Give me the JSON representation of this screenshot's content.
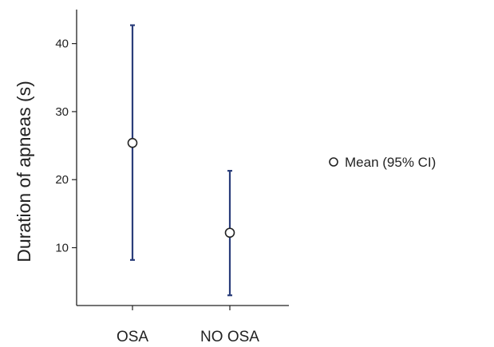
{
  "chart_data": {
    "type": "errorbar",
    "title": "",
    "xlabel": "",
    "ylabel": "Duration of apneas (s)",
    "categories": [
      "OSA",
      "NO OSA"
    ],
    "series": [
      {
        "name": "Mean (95% CI)",
        "mean": [
          25.4,
          12.2
        ],
        "ci_low": [
          8.2,
          3.0
        ],
        "ci_high": [
          42.7,
          21.3
        ]
      }
    ],
    "ylim": [
      1.5,
      45
    ],
    "yticks": [
      10,
      20,
      30,
      40
    ],
    "ytick_labels": [
      "10",
      "20",
      "30",
      "40"
    ],
    "grid": false,
    "legend_position": "right",
    "colors": {
      "errorbar": "#2a3d7a",
      "marker_fill": "#ffffff",
      "marker_stroke": "#222222",
      "axis": "#222222"
    }
  }
}
